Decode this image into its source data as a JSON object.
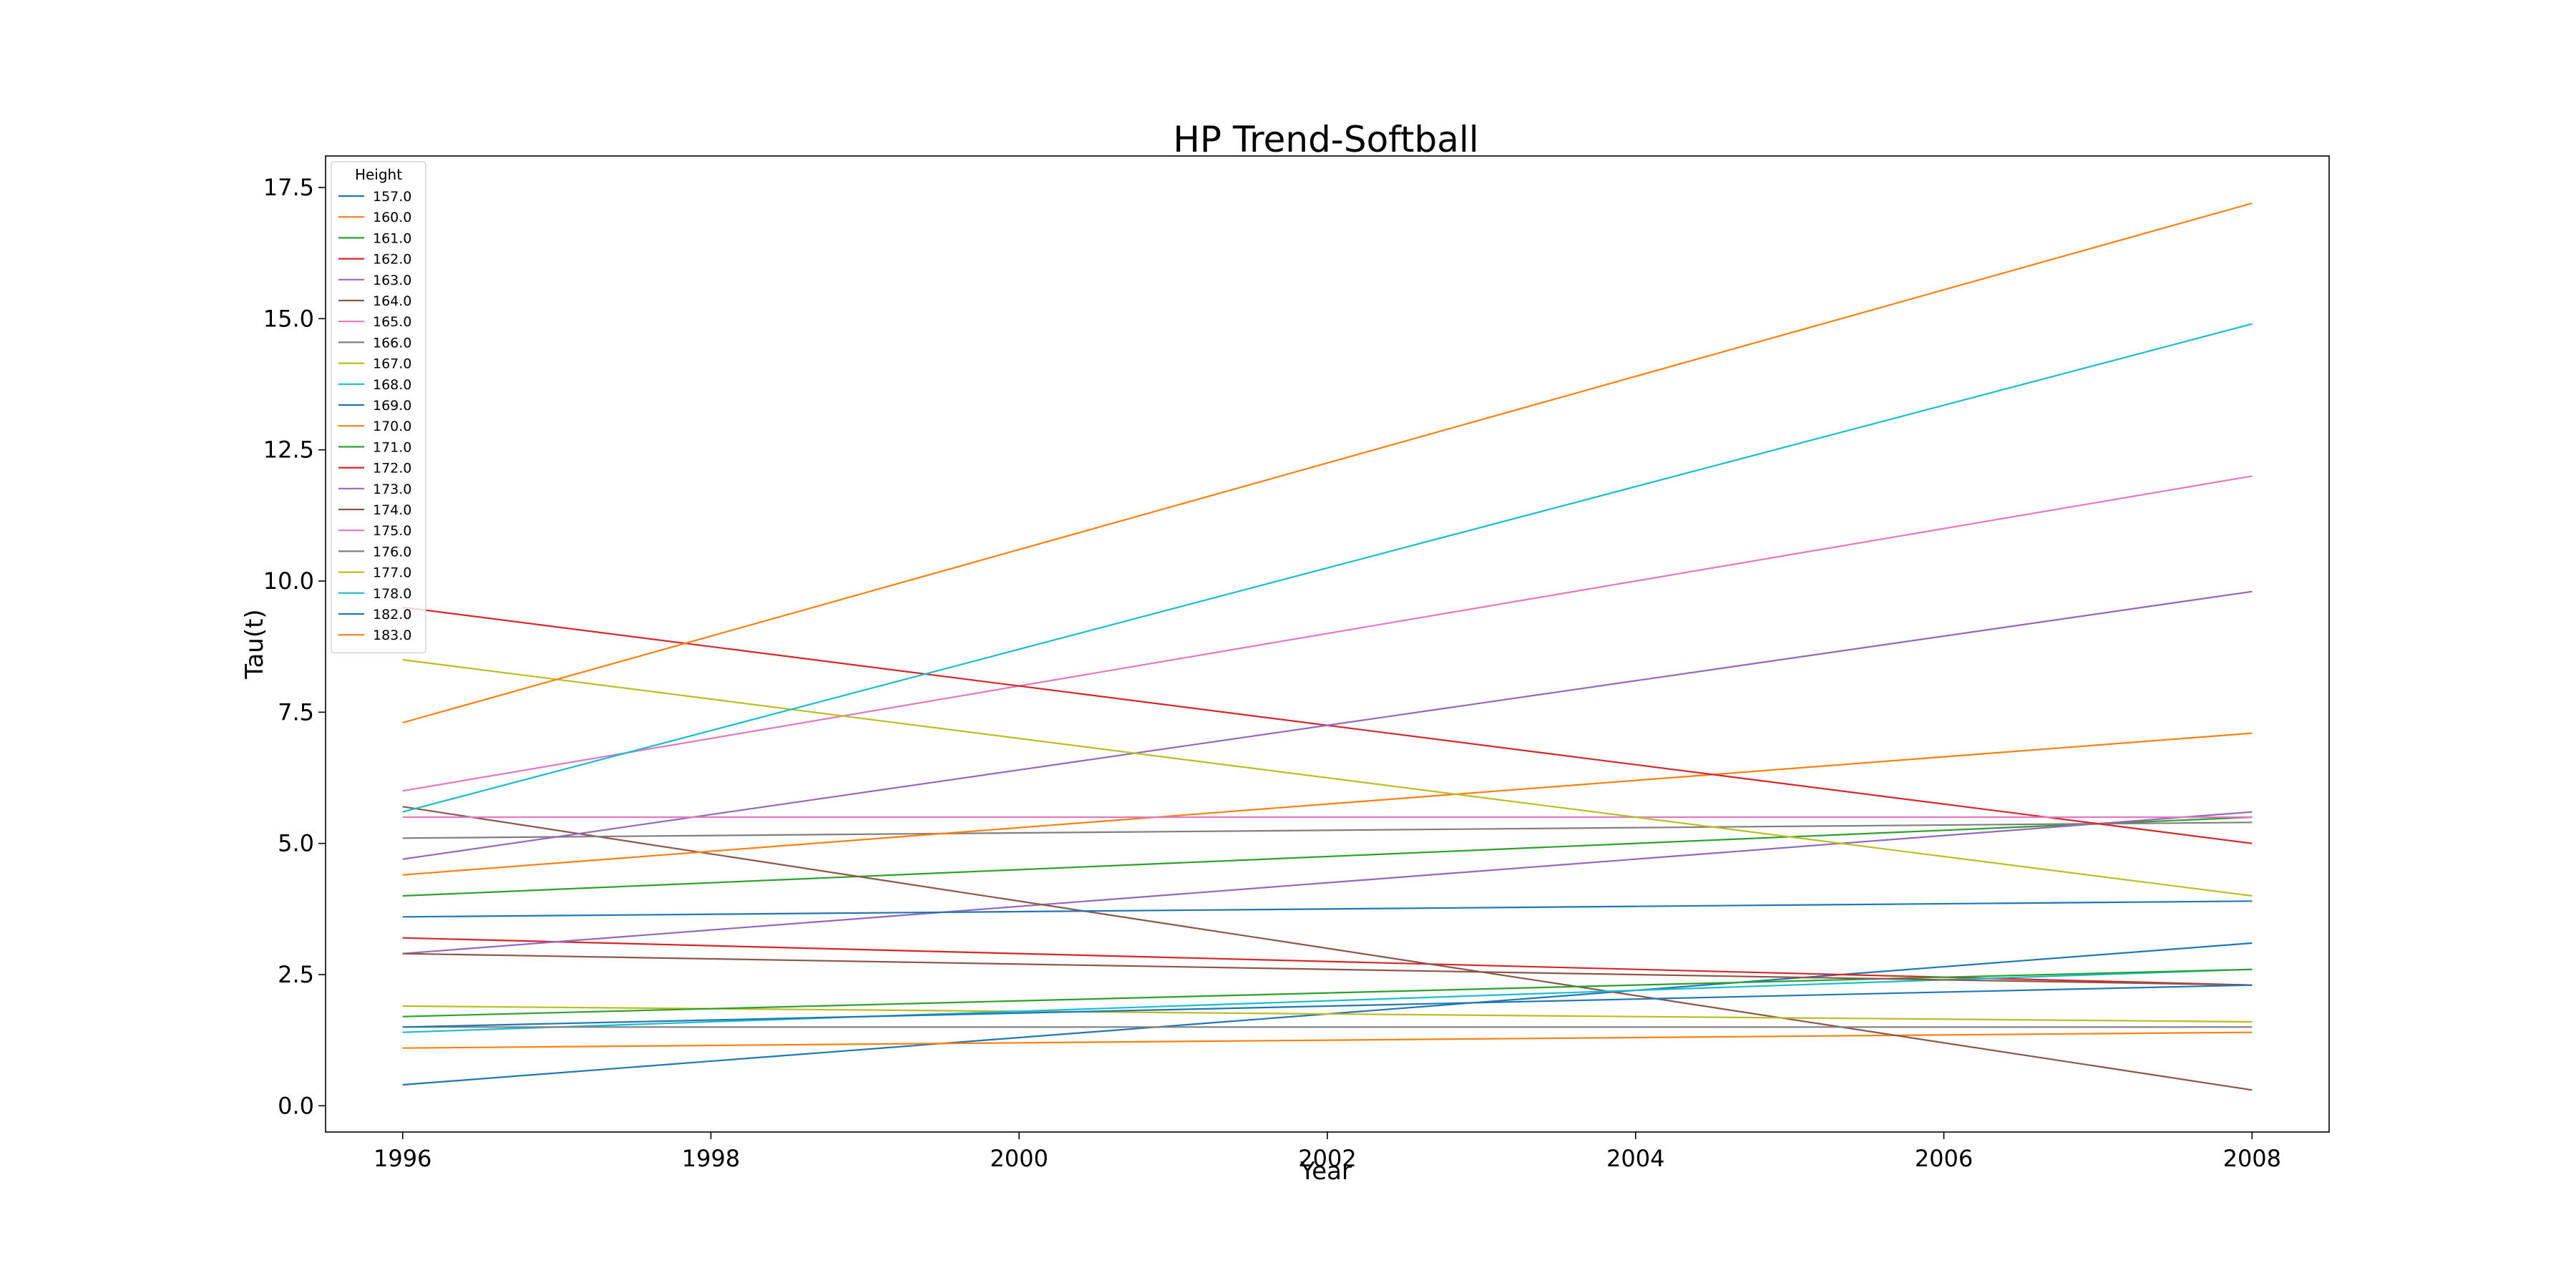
{
  "chart_data": {
    "type": "line",
    "title": "HP Trend-Softball",
    "xlabel": "Year",
    "ylabel": "Tau(t)",
    "xlim": [
      1995.5,
      2008.5
    ],
    "ylim": [
      -0.5,
      18.1
    ],
    "xticks": [
      1996,
      1998,
      2000,
      2002,
      2004,
      2006,
      2008
    ],
    "xtick_labels": [
      "1996",
      "1998",
      "2000",
      "2002",
      "2004",
      "2006",
      "2008"
    ],
    "yticks": [
      0.0,
      2.5,
      5.0,
      7.5,
      10.0,
      12.5,
      15.0,
      17.5
    ],
    "ytick_labels": [
      "0.0",
      "2.5",
      "5.0",
      "7.5",
      "10.0",
      "12.5",
      "15.0",
      "17.5"
    ],
    "grid": false,
    "legend": {
      "title": "Height",
      "placement": "top-left"
    },
    "x": [
      1996,
      2008
    ],
    "series": [
      {
        "name": "157.0",
        "color": "#1f77b4",
        "values": [
          0.4,
          3.1
        ]
      },
      {
        "name": "160.0",
        "color": "#ff7f0e",
        "values": [
          1.1,
          1.4
        ]
      },
      {
        "name": "161.0",
        "color": "#2ca02c",
        "values": [
          4.0,
          5.5
        ]
      },
      {
        "name": "162.0",
        "color": "#d62728",
        "values": [
          3.2,
          2.3
        ]
      },
      {
        "name": "163.0",
        "color": "#9467bd",
        "values": [
          2.9,
          5.6
        ]
      },
      {
        "name": "164.0",
        "color": "#8c564b",
        "values": [
          5.7,
          0.3
        ]
      },
      {
        "name": "165.0",
        "color": "#e377c2",
        "values": [
          6.0,
          12.0
        ]
      },
      {
        "name": "166.0",
        "color": "#7f7f7f",
        "values": [
          5.1,
          5.4
        ]
      },
      {
        "name": "167.0",
        "color": "#bcbd22",
        "values": [
          1.9,
          1.6
        ]
      },
      {
        "name": "168.0",
        "color": "#17becf",
        "values": [
          1.4,
          2.6
        ]
      },
      {
        "name": "169.0",
        "color": "#1f77b4",
        "values": [
          3.6,
          3.9
        ]
      },
      {
        "name": "170.0",
        "color": "#ff7f0e",
        "values": [
          4.4,
          7.1
        ]
      },
      {
        "name": "171.0",
        "color": "#2ca02c",
        "values": [
          1.7,
          2.6
        ]
      },
      {
        "name": "172.0",
        "color": "#d62728",
        "values": [
          9.5,
          5.0
        ]
      },
      {
        "name": "173.0",
        "color": "#9467bd",
        "values": [
          4.7,
          9.8
        ]
      },
      {
        "name": "174.0",
        "color": "#8c564b",
        "values": [
          2.9,
          2.3
        ]
      },
      {
        "name": "175.0",
        "color": "#e377c2",
        "values": [
          5.5,
          5.5
        ]
      },
      {
        "name": "176.0",
        "color": "#7f7f7f",
        "values": [
          1.5,
          1.5
        ]
      },
      {
        "name": "177.0",
        "color": "#bcbd22",
        "values": [
          8.5,
          4.0
        ]
      },
      {
        "name": "178.0",
        "color": "#17becf",
        "values": [
          5.6,
          14.9
        ]
      },
      {
        "name": "182.0",
        "color": "#1f77b4",
        "values": [
          1.5,
          2.3
        ]
      },
      {
        "name": "183.0",
        "color": "#ff7f0e",
        "values": [
          7.3,
          17.2
        ]
      }
    ]
  }
}
